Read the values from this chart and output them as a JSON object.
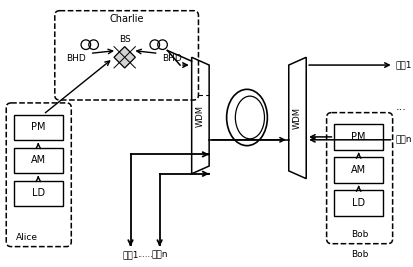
{
  "bg_color": "#ffffff",
  "charlie_label": "Charlie",
  "alice_label": "Alice",
  "bob_label": "Bob",
  "bs_label": "BS",
  "bhd_left_label": "BHD",
  "bhd_right_label": "BHD",
  "pm_label": "PM",
  "am_label": "AM",
  "ld_label": "LD",
  "wdm_label": "WDM",
  "user1_label": "用户1",
  "usern_label": "用户n",
  "dots_label": "......",
  "user1_right_label": "用户1",
  "usern_right_label": "用户n"
}
